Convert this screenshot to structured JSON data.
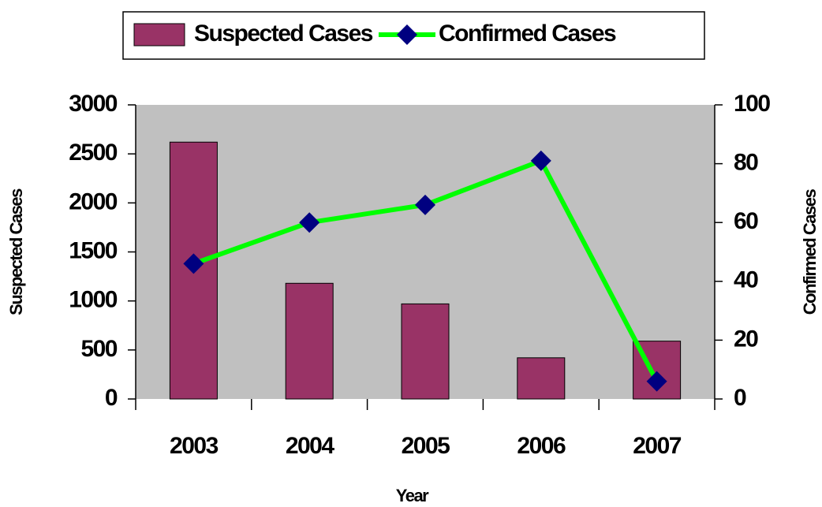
{
  "chart_data": {
    "type": "bar",
    "categories": [
      "2003",
      "2004",
      "2005",
      "2006",
      "2007"
    ],
    "series": [
      {
        "name": "Suspected Cases",
        "type": "bar",
        "color": "#993366",
        "values": [
          2620,
          1180,
          970,
          420,
          590
        ]
      },
      {
        "name": "Confirmed Cases",
        "type": "line",
        "axis": "y2",
        "color": "#00ff00",
        "marker_color": "#000080",
        "values": [
          46,
          60,
          66,
          81,
          6
        ]
      }
    ],
    "x_label": "Year",
    "y_label": "Suspected Cases",
    "y2_label": "Confirmed Cases",
    "ylim": [
      0,
      3000
    ],
    "yticks": [
      0,
      500,
      1000,
      1500,
      2000,
      2500,
      3000
    ],
    "y2lim": [
      0,
      100
    ],
    "y2ticks": [
      0,
      20,
      40,
      60,
      80,
      100
    ],
    "plot_background": "#c0c0c0",
    "legend": "top"
  }
}
